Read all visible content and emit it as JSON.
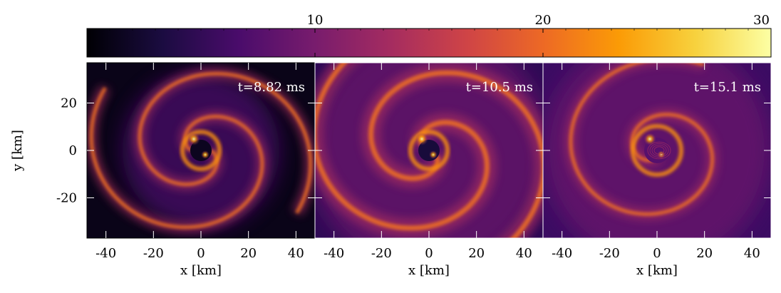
{
  "chart_data": {
    "type": "heatmap",
    "colormap": "inferno",
    "colorbar": {
      "range": [
        0,
        30
      ],
      "ticks": [
        10,
        20,
        30
      ],
      "tick_labels": [
        "10",
        "20",
        "30"
      ],
      "orientation": "horizontal",
      "placement": "top"
    },
    "shared_xlabel": "x [km]",
    "ylabel": "y [km]",
    "xlim": [
      -48,
      48
    ],
    "ylim": [
      -37,
      37
    ],
    "x_ticks": [
      -40,
      -20,
      0,
      20,
      40
    ],
    "x_tick_labels": [
      "-40",
      "-20",
      "0",
      "20",
      "40"
    ],
    "y_ticks": [
      -20,
      0,
      20
    ],
    "y_tick_labels": [
      "-20",
      "0",
      "20"
    ],
    "panels": [
      {
        "annotation": "t=8.82 ms",
        "structure": "two-arm spiral with dark core",
        "arm_count": 2,
        "core_level": 0.05
      },
      {
        "annotation": "t=10.5 ms",
        "structure": "broad spiral, extended envelope",
        "arm_count": 2,
        "core_level": 0.1
      },
      {
        "annotation": "t=15.1 ms",
        "structure": "ring with compact central vortex",
        "arm_count": 1,
        "core_level": 0.25
      }
    ],
    "colors": {
      "inferno_stops": [
        "#000004",
        "#1b0c41",
        "#4a0c6b",
        "#781c6d",
        "#a52c60",
        "#cf4446",
        "#ed6925",
        "#fb9b06",
        "#f7d13d",
        "#fcffa4"
      ]
    }
  }
}
